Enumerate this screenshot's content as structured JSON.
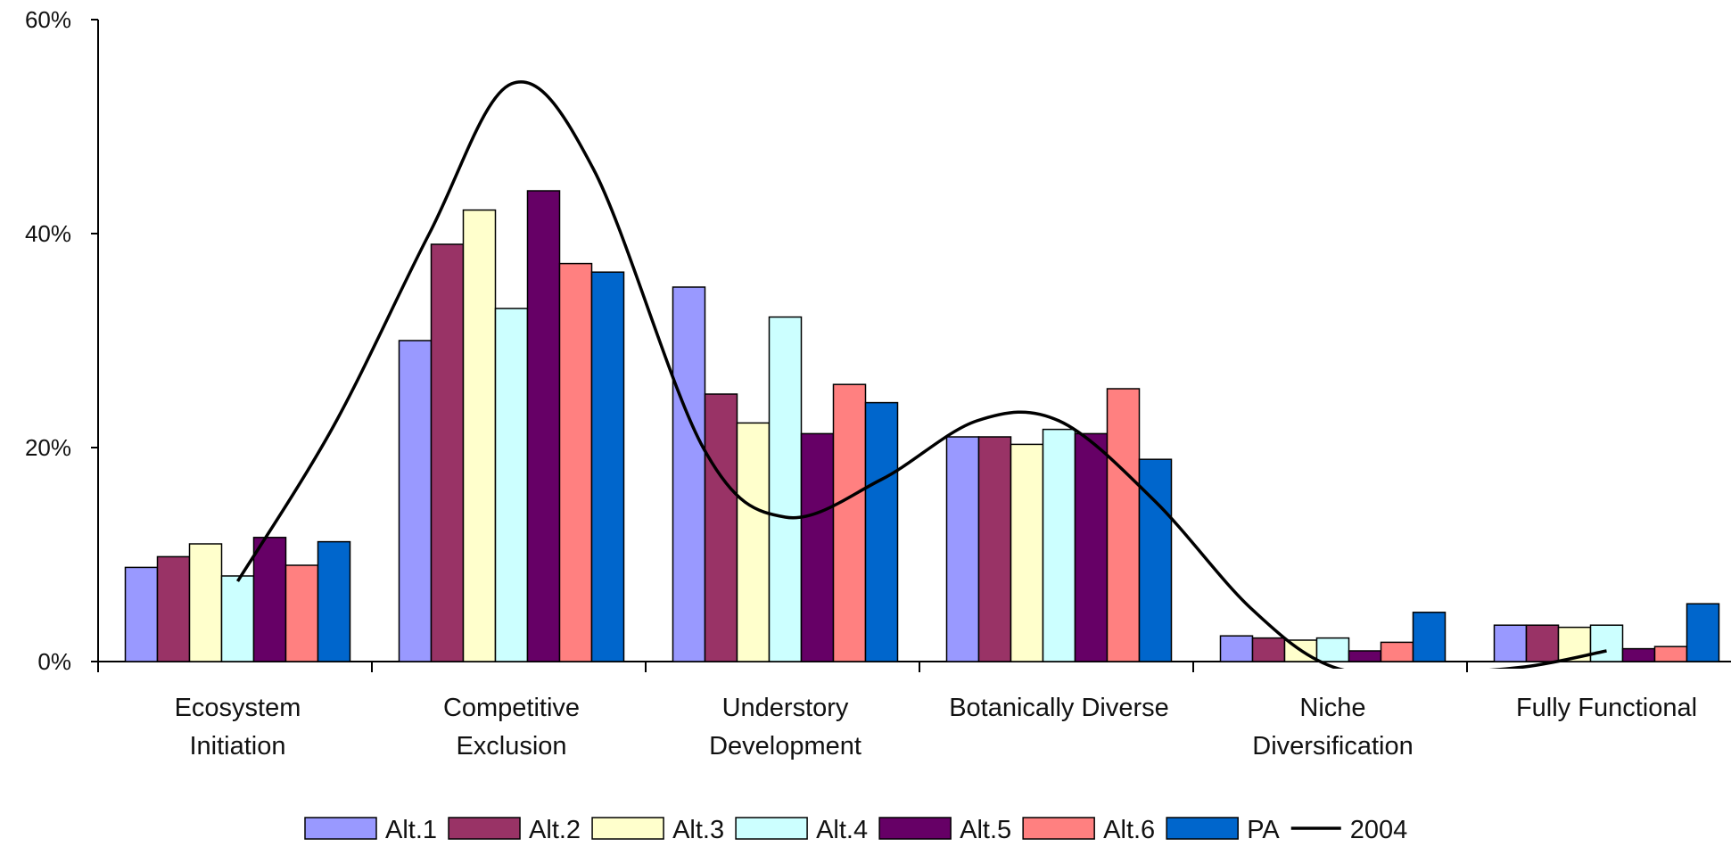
{
  "chart_data": {
    "type": "bar",
    "categories": [
      [
        "Ecosystem",
        "Initiation"
      ],
      [
        "Competitive",
        "Exclusion"
      ],
      [
        "Understory",
        "Development"
      ],
      [
        "Botanically Diverse"
      ],
      [
        "Niche",
        "Diversification"
      ],
      [
        "Fully Functional"
      ]
    ],
    "y_ticks": [
      "0%",
      "20%",
      "40%",
      "60%"
    ],
    "ylim": [
      0,
      60
    ],
    "grid": false,
    "legend_position": "bottom",
    "series": [
      {
        "name": "Alt.1",
        "color": "#9999ff",
        "values": [
          8.8,
          30.0,
          35.0,
          21.0,
          2.4,
          3.4
        ]
      },
      {
        "name": "Alt.2",
        "color": "#993366",
        "values": [
          9.8,
          39.0,
          25.0,
          21.0,
          2.2,
          3.4
        ]
      },
      {
        "name": "Alt.3",
        "color": "#ffffcc",
        "values": [
          11.0,
          42.2,
          22.3,
          20.3,
          2.0,
          3.2
        ]
      },
      {
        "name": "Alt.4",
        "color": "#ccffff",
        "values": [
          8.0,
          33.0,
          32.2,
          21.7,
          2.2,
          3.4
        ]
      },
      {
        "name": "Alt.5",
        "color": "#660066",
        "values": [
          11.6,
          44.0,
          21.3,
          21.3,
          1.0,
          1.2
        ]
      },
      {
        "name": "Alt.6",
        "color": "#ff8080",
        "values": [
          9.0,
          37.2,
          25.9,
          25.5,
          1.8,
          1.4
        ]
      },
      {
        "name": "PA",
        "color": "#0066cc",
        "values": [
          11.2,
          36.4,
          24.2,
          18.9,
          4.6,
          5.4
        ]
      }
    ],
    "line_series": {
      "name": "2004",
      "color": "#000000",
      "points": [
        {
          "x": 0.0,
          "y": 7.5
        },
        {
          "x": 0.35,
          "y": 22.0
        },
        {
          "x": 0.7,
          "y": 40.0
        },
        {
          "x": 1.0,
          "y": 54.0
        },
        {
          "x": 1.3,
          "y": 46.0
        },
        {
          "x": 1.7,
          "y": 20.0
        },
        {
          "x": 2.0,
          "y": 13.5
        },
        {
          "x": 2.35,
          "y": 17.0
        },
        {
          "x": 2.7,
          "y": 22.5
        },
        {
          "x": 3.0,
          "y": 22.5
        },
        {
          "x": 3.35,
          "y": 15.0
        },
        {
          "x": 3.7,
          "y": 5.0
        },
        {
          "x": 4.0,
          "y": -0.5
        },
        {
          "x": 4.35,
          "y": -1.0
        },
        {
          "x": 4.7,
          "y": -0.5
        },
        {
          "x": 5.0,
          "y": 1.0
        }
      ]
    }
  }
}
